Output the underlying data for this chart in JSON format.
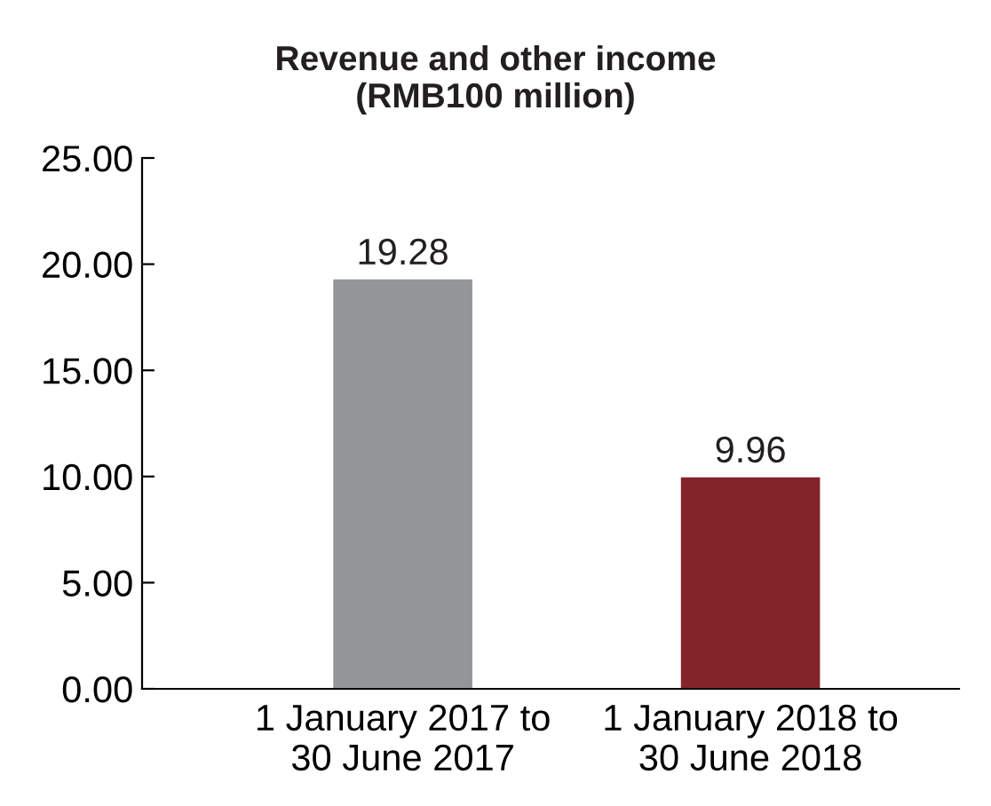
{
  "chart_data": {
    "type": "bar",
    "title": "Revenue and other income\n(RMB100 million)",
    "categories": [
      "1 January 2017 to\n30 June 2017",
      "1 January 2018 to\n30 June 2018"
    ],
    "values": [
      19.28,
      9.96
    ],
    "colors": [
      "#939598",
      "#83242b"
    ],
    "ylim": [
      0,
      25
    ],
    "yticks": [
      {
        "value": 0,
        "label": "0.00"
      },
      {
        "value": 5,
        "label": "5.00"
      },
      {
        "value": 10,
        "label": "10.00"
      },
      {
        "value": 15,
        "label": "15.00"
      },
      {
        "value": 20,
        "label": "20.00"
      },
      {
        "value": 25,
        "label": "25.00"
      }
    ],
    "data_labels": true,
    "grid": false,
    "legend": false
  }
}
